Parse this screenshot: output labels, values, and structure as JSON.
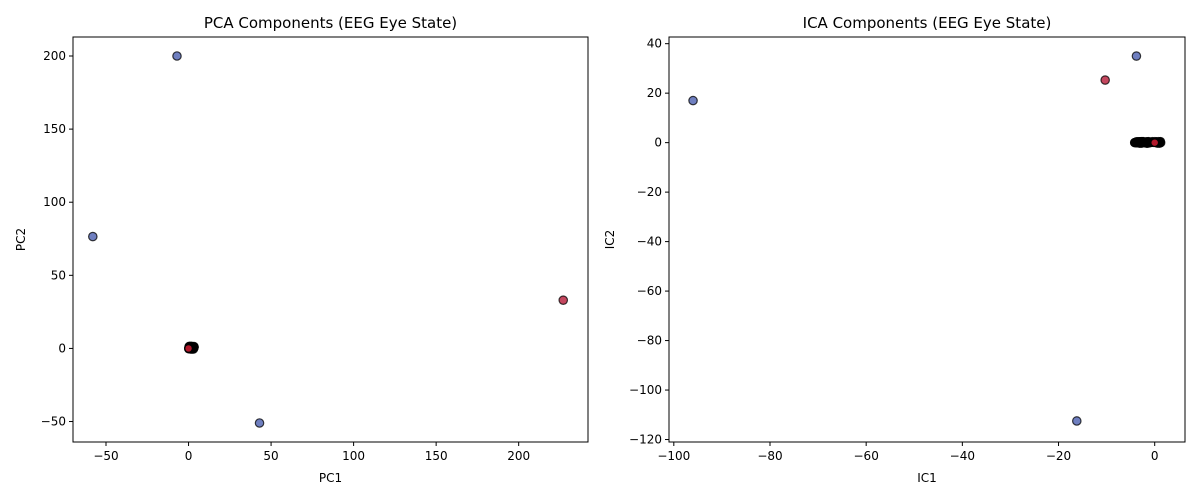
{
  "chart_data": [
    {
      "type": "scatter",
      "title": "PCA Components (EEG Eye State)",
      "xlabel": "PC1",
      "ylabel": "PC2",
      "xlim": [
        -70,
        242
      ],
      "ylim": [
        -64,
        213
      ],
      "xticks": [
        -50,
        0,
        50,
        100,
        150,
        200
      ],
      "yticks": [
        -50,
        0,
        50,
        100,
        150,
        200
      ],
      "grid": false,
      "colors": {
        "class0": "#6f7fc0",
        "class1": "#c4475f",
        "cluster_edge": "#000000",
        "cluster_fill": "#b2182b"
      },
      "points": [
        {
          "x": -7,
          "y": 200,
          "cls": 0
        },
        {
          "x": -58,
          "y": 76.5,
          "cls": 0
        },
        {
          "x": 227,
          "y": 33,
          "cls": 1
        },
        {
          "x": 43,
          "y": -51,
          "cls": 0
        }
      ],
      "cluster": {
        "x": [
          0,
          3.5
        ],
        "y": [
          -0.5,
          1.5
        ],
        "count": 80
      }
    },
    {
      "type": "scatter",
      "title": "ICA Components (EEG Eye State)",
      "xlabel": "IC1",
      "ylabel": "IC2",
      "xlim": [
        -101,
        6.3
      ],
      "ylim": [
        -121,
        42.7
      ],
      "xticks": [
        -100,
        -80,
        -60,
        -40,
        -20,
        0
      ],
      "yticks": [
        -120,
        -100,
        -80,
        -60,
        -40,
        -20,
        0,
        20,
        40
      ],
      "grid": false,
      "colors": {
        "class0": "#6f7fc0",
        "class1": "#c4475f",
        "cluster_edge": "#000000",
        "cluster_fill": "#b2182b"
      },
      "points": [
        {
          "x": -96,
          "y": 17,
          "cls": 0
        },
        {
          "x": -3.8,
          "y": 35,
          "cls": 0
        },
        {
          "x": -10.3,
          "y": 25.3,
          "cls": 1
        },
        {
          "x": -16.2,
          "y": -112.5,
          "cls": 0
        }
      ],
      "cluster": {
        "x": [
          -4.2,
          1.3
        ],
        "y": [
          -0.3,
          0.5
        ],
        "count": 80
      }
    }
  ]
}
